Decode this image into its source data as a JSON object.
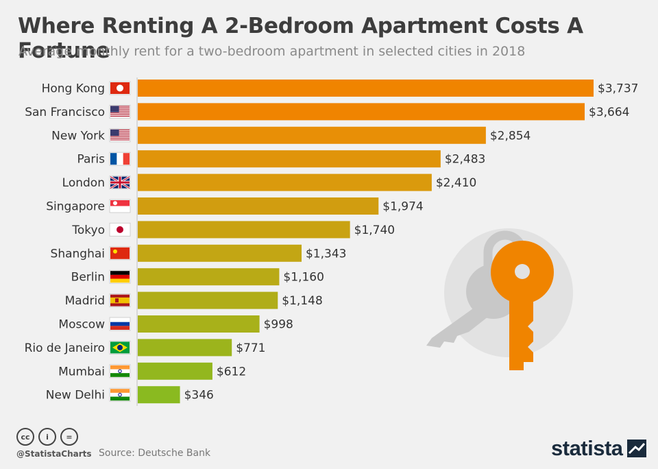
{
  "header": {
    "title": "Where Renting A 2-Bedroom Apartment Costs A Fortune",
    "subtitle": "Average monthly rent for a two-bedroom apartment in selected cities in 2018"
  },
  "chart_data": {
    "type": "bar",
    "orientation": "horizontal",
    "title": "Where Renting A 2-Bedroom Apartment Costs A Fortune",
    "subtitle": "Average monthly rent for a two-bedroom apartment in selected cities in 2018",
    "unit_prefix": "$",
    "categories": [
      "Hong Kong",
      "San Francisco",
      "New York",
      "Paris",
      "London",
      "Singapore",
      "Tokyo",
      "Shanghai",
      "Berlin",
      "Madrid",
      "Moscow",
      "Rio de Janeiro",
      "Mumbai",
      "New Delhi"
    ],
    "values": [
      3737,
      3664,
      2854,
      2483,
      2410,
      1974,
      1740,
      1343,
      1160,
      1148,
      998,
      771,
      612,
      346
    ],
    "value_labels": [
      "$3,737",
      "$3,664",
      "$2,854",
      "$2,483",
      "$2,410",
      "$1,974",
      "$1,740",
      "$1,343",
      "$1,160",
      "$1,148",
      "$998",
      "$771",
      "$612",
      "$346"
    ],
    "flags": [
      "hk",
      "us",
      "us",
      "fr",
      "gb",
      "sg",
      "jp",
      "cn",
      "de",
      "es",
      "ru",
      "br",
      "in",
      "in"
    ],
    "colors": [
      "#f08400",
      "#f08400",
      "#e88f06",
      "#e0940a",
      "#da9a0d",
      "#d19d10",
      "#c9a212",
      "#c3a614",
      "#b9aa16",
      "#b0ad18",
      "#a8b11a",
      "#9cb41c",
      "#93b71e",
      "#8aba20"
    ],
    "xlim": [
      0,
      3737
    ],
    "grid": false,
    "legend": "none"
  },
  "footer": {
    "icons": [
      "cc-icon",
      "by-icon",
      "nd-icon"
    ],
    "icon_glyphs": [
      "cc",
      "i",
      "="
    ],
    "handle": "@StatistaCharts",
    "source_label": "Source: Deutsche Bank",
    "brand": "statista"
  },
  "colors": {
    "background": "#f1f1f1",
    "title": "#3d3d3d",
    "subtitle": "#8a8a8a",
    "key": "#f08400",
    "lock": "#c8c8c8",
    "circle": "#e2e2e2"
  }
}
